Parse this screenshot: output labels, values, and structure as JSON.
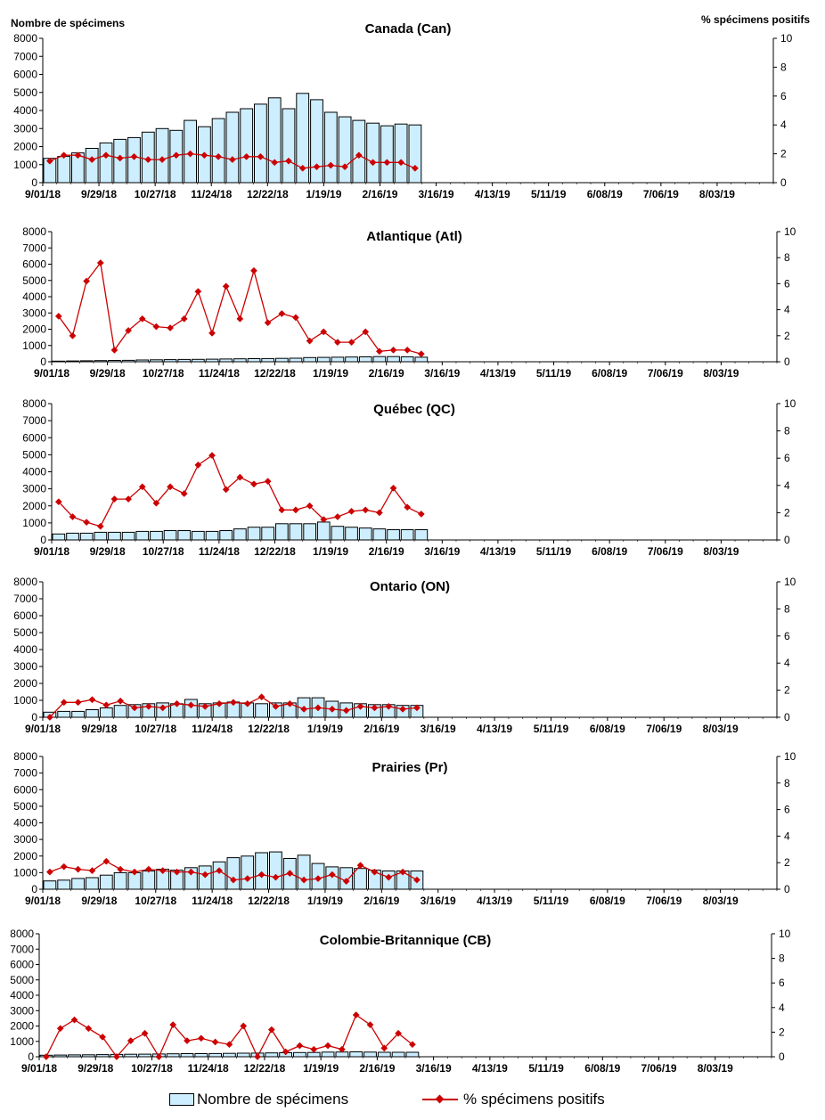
{
  "header": {
    "left_axis_label": "Nombre de spécimens",
    "right_axis_label": "% spécimens positifs"
  },
  "legend": {
    "bars_label": "Nombre de spécimens",
    "line_label": "% spécimens positifs"
  },
  "colors": {
    "bar_fill": "#cceeff",
    "bar_stroke": "#000000",
    "line": "#cc0000"
  },
  "chart_data": [
    {
      "type": "bar",
      "title": "Canada (Can)",
      "x_tick_labels": [
        "9/01/18",
        "9/29/18",
        "10/27/18",
        "11/24/18",
        "12/22/18",
        "1/19/19",
        "2/16/19",
        "3/16/19",
        "4/13/19",
        "5/11/19",
        "6/08/19",
        "7/06/19",
        "8/03/19"
      ],
      "ylim": [
        0,
        8000
      ],
      "yticks": [
        0,
        1000,
        2000,
        3000,
        4000,
        5000,
        6000,
        7000,
        8000
      ],
      "y2lim": [
        0,
        10
      ],
      "y2ticks": [
        0,
        2,
        4,
        6,
        8,
        10
      ],
      "n_weeks": 52,
      "series": [
        {
          "name": "Nombre de spécimens",
          "type": "bar",
          "values": [
            1350,
            1450,
            1650,
            1900,
            2200,
            2400,
            2500,
            2800,
            3000,
            2900,
            3450,
            3100,
            3550,
            3900,
            4100,
            4350,
            4700,
            4100,
            4950,
            4600,
            3900,
            3650,
            3450,
            3300,
            3150,
            3250,
            3200
          ]
        },
        {
          "name": "% spécimens positifs",
          "type": "line",
          "axis": "right",
          "values": [
            1.5,
            1.9,
            1.9,
            1.6,
            1.9,
            1.7,
            1.8,
            1.6,
            1.6,
            1.9,
            2.0,
            1.9,
            1.8,
            1.6,
            1.8,
            1.8,
            1.4,
            1.5,
            1.0,
            1.1,
            1.2,
            1.1,
            1.9,
            1.4,
            1.4,
            1.4,
            1.0
          ]
        }
      ]
    },
    {
      "type": "bar",
      "title": "Atlantique (Atl)",
      "x_tick_labels": [
        "9/01/18",
        "9/29/18",
        "10/27/18",
        "11/24/18",
        "12/22/18",
        "1/19/19",
        "2/16/19",
        "3/16/19",
        "4/13/19",
        "5/11/19",
        "6/08/19",
        "7/06/19",
        "8/03/19"
      ],
      "ylim": [
        0,
        8000
      ],
      "yticks": [
        0,
        1000,
        2000,
        3000,
        4000,
        5000,
        6000,
        7000,
        8000
      ],
      "y2lim": [
        0,
        10
      ],
      "y2ticks": [
        0,
        2,
        4,
        6,
        8,
        10
      ],
      "n_weeks": 52,
      "series": [
        {
          "name": "Nombre de spécimens",
          "type": "bar",
          "values": [
            40,
            50,
            60,
            70,
            80,
            90,
            110,
            120,
            130,
            140,
            150,
            160,
            170,
            180,
            190,
            200,
            210,
            220,
            260,
            270,
            280,
            290,
            300,
            320,
            320,
            300,
            280
          ]
        },
        {
          "name": "% spécimens positifs",
          "type": "line",
          "axis": "right",
          "values": [
            3.5,
            2.0,
            6.2,
            7.6,
            0.9,
            2.4,
            3.3,
            2.7,
            2.6,
            3.3,
            5.4,
            2.2,
            5.8,
            3.3,
            7.0,
            3.0,
            3.7,
            3.4,
            1.6,
            2.3,
            1.5,
            1.5,
            2.3,
            0.8,
            0.9,
            0.9,
            0.6
          ]
        }
      ]
    },
    {
      "type": "bar",
      "title": "Québec (QC)",
      "x_tick_labels": [
        "9/01/18",
        "9/29/18",
        "10/27/18",
        "11/24/18",
        "12/22/18",
        "1/19/19",
        "2/16/19",
        "3/16/19",
        "4/13/19",
        "5/11/19",
        "6/08/19",
        "7/06/19",
        "8/03/19"
      ],
      "ylim": [
        0,
        8000
      ],
      "yticks": [
        0,
        1000,
        2000,
        3000,
        4000,
        5000,
        6000,
        7000,
        8000
      ],
      "y2lim": [
        0,
        10
      ],
      "y2ticks": [
        0,
        2,
        4,
        6,
        8,
        10
      ],
      "n_weeks": 52,
      "series": [
        {
          "name": "Nombre de spécimens",
          "type": "bar",
          "values": [
            350,
            400,
            400,
            450,
            450,
            450,
            500,
            500,
            550,
            550,
            500,
            500,
            550,
            650,
            750,
            750,
            950,
            950,
            950,
            1050,
            800,
            750,
            700,
            650,
            600,
            600,
            600
          ]
        },
        {
          "name": "% spécimens positifs",
          "type": "line",
          "axis": "right",
          "values": [
            2.8,
            1.7,
            1.3,
            1.0,
            3.0,
            3.0,
            3.9,
            2.7,
            3.9,
            3.4,
            5.5,
            6.2,
            3.7,
            4.6,
            4.1,
            4.3,
            2.2,
            2.2,
            2.5,
            1.5,
            1.7,
            2.1,
            2.2,
            2.0,
            3.8,
            2.4,
            1.9
          ]
        }
      ]
    },
    {
      "type": "bar",
      "title": "Ontario (ON)",
      "x_tick_labels": [
        "9/01/18",
        "9/29/18",
        "10/27/18",
        "11/24/18",
        "12/22/18",
        "1/19/19",
        "2/16/19",
        "3/16/19",
        "4/13/19",
        "5/11/19",
        "6/08/19",
        "7/06/19",
        "8/03/19"
      ],
      "ylim": [
        0,
        8000
      ],
      "yticks": [
        0,
        1000,
        2000,
        3000,
        4000,
        5000,
        6000,
        7000,
        8000
      ],
      "y2lim": [
        0,
        10
      ],
      "y2ticks": [
        0,
        2,
        4,
        6,
        8,
        10
      ],
      "n_weeks": 52,
      "series": [
        {
          "name": "Nombre de spécimens",
          "type": "bar",
          "values": [
            300,
            350,
            350,
            450,
            550,
            700,
            750,
            800,
            850,
            800,
            1050,
            800,
            850,
            900,
            850,
            800,
            850,
            850,
            1150,
            1150,
            950,
            850,
            800,
            750,
            750,
            700,
            700
          ]
        },
        {
          "name": "% spécimens positifs",
          "type": "line",
          "axis": "right",
          "values": [
            0.0,
            1.1,
            1.1,
            1.3,
            0.9,
            1.2,
            0.7,
            0.8,
            0.7,
            1.0,
            0.9,
            0.8,
            1.0,
            1.1,
            1.0,
            1.5,
            0.8,
            1.0,
            0.6,
            0.7,
            0.6,
            0.5,
            0.8,
            0.7,
            0.8,
            0.6,
            0.7
          ]
        }
      ]
    },
    {
      "type": "bar",
      "title": "Prairies (Pr)",
      "x_tick_labels": [
        "9/01/18",
        "9/29/18",
        "10/27/18",
        "11/24/18",
        "12/22/18",
        "1/19/19",
        "2/16/19",
        "3/16/19",
        "4/13/19",
        "5/11/19",
        "6/08/19",
        "7/06/19",
        "8/03/19"
      ],
      "ylim": [
        0,
        8000
      ],
      "yticks": [
        0,
        1000,
        2000,
        3000,
        4000,
        5000,
        6000,
        7000,
        8000
      ],
      "y2lim": [
        0,
        10
      ],
      "y2ticks": [
        0,
        2,
        4,
        6,
        8,
        10
      ],
      "n_weeks": 52,
      "series": [
        {
          "name": "Nombre de spécimens",
          "type": "bar",
          "values": [
            500,
            550,
            650,
            700,
            850,
            1000,
            1000,
            1100,
            1200,
            1150,
            1300,
            1400,
            1650,
            1900,
            2000,
            2200,
            2250,
            1850,
            2050,
            1550,
            1350,
            1300,
            1250,
            1150,
            1100,
            1100,
            1100
          ]
        },
        {
          "name": "% spécimens positifs",
          "type": "line",
          "axis": "right",
          "values": [
            1.3,
            1.7,
            1.5,
            1.4,
            2.1,
            1.5,
            1.3,
            1.5,
            1.4,
            1.3,
            1.3,
            1.1,
            1.4,
            0.7,
            0.8,
            1.1,
            0.9,
            1.2,
            0.7,
            0.8,
            1.1,
            0.6,
            1.8,
            1.3,
            0.9,
            1.3,
            0.7
          ]
        }
      ]
    },
    {
      "type": "bar",
      "title": "Colombie-Britannique (CB)",
      "x_tick_labels": [
        "9/01/18",
        "9/29/18",
        "10/27/18",
        "11/24/18",
        "12/22/18",
        "1/19/19",
        "2/16/19",
        "3/16/19",
        "4/13/19",
        "5/11/19",
        "6/08/19",
        "7/06/19",
        "8/03/19"
      ],
      "ylim": [
        0,
        8000
      ],
      "yticks": [
        0,
        1000,
        2000,
        3000,
        4000,
        5000,
        6000,
        7000,
        8000
      ],
      "y2lim": [
        0,
        10
      ],
      "y2ticks": [
        0,
        2,
        4,
        6,
        8,
        10
      ],
      "n_weeks": 52,
      "series": [
        {
          "name": "Nombre de spécimens",
          "type": "bar",
          "values": [
            100,
            110,
            120,
            130,
            140,
            150,
            160,
            170,
            180,
            190,
            200,
            200,
            210,
            220,
            230,
            240,
            250,
            260,
            270,
            280,
            300,
            310,
            320,
            300,
            290,
            290,
            290
          ]
        },
        {
          "name": "% spécimens positifs",
          "type": "line",
          "axis": "right",
          "values": [
            0.0,
            2.3,
            3.0,
            2.3,
            1.6,
            0.0,
            1.3,
            1.9,
            0.0,
            2.6,
            1.3,
            1.5,
            1.2,
            1.0,
            2.5,
            0.0,
            2.2,
            0.4,
            0.9,
            0.6,
            0.9,
            0.6,
            3.4,
            2.6,
            0.7,
            1.9,
            1.0
          ]
        }
      ]
    }
  ]
}
